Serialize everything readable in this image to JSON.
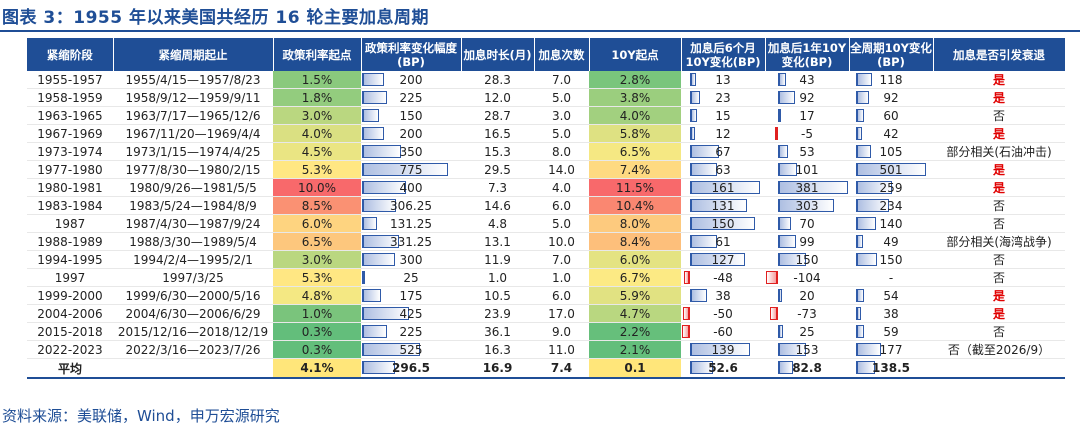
{
  "title": "图表 3：1955 年以来美国共经历 16 轮主要加息周期",
  "source": "资料来源：美联储，Wind，申万宏源研究",
  "columns": [
    "紧缩阶段",
    "紧缩周期起止",
    "政策利率起点",
    "政策利率变化幅度(BP)",
    "加息时长(月)",
    "加息次数",
    "10Y起点",
    "加息后6个月10Y变化(BP)",
    "加息后1年10Y变化(BP)",
    "全周期10Y变化(BP)",
    "加息是否引发衰退"
  ],
  "rows": [
    {
      "stage": "1955-1957",
      "period": "1955/4/15—1957/8/23",
      "rate_start": "1.5%",
      "rate_change": "200",
      "duration": "28.3",
      "hikes": "7.0",
      "y10_start": "2.8%",
      "y10_6m": "13",
      "y10_1y": "43",
      "y10_full": "118",
      "recession": "是"
    },
    {
      "stage": "1958-1959",
      "period": "1958/9/12—1959/9/11",
      "rate_start": "1.8%",
      "rate_change": "225",
      "duration": "12.0",
      "hikes": "5.0",
      "y10_start": "3.8%",
      "y10_6m": "23",
      "y10_1y": "92",
      "y10_full": "92",
      "recession": "是"
    },
    {
      "stage": "1963-1965",
      "period": "1963/7/17—1965/12/6",
      "rate_start": "3.0%",
      "rate_change": "150",
      "duration": "28.7",
      "hikes": "3.0",
      "y10_start": "4.0%",
      "y10_6m": "15",
      "y10_1y": "17",
      "y10_full": "60",
      "recession": "否"
    },
    {
      "stage": "1967-1969",
      "period": "1967/11/20—1969/4/4",
      "rate_start": "4.0%",
      "rate_change": "200",
      "duration": "16.5",
      "hikes": "5.0",
      "y10_start": "5.8%",
      "y10_6m": "12",
      "y10_1y": "-5",
      "y10_full": "42",
      "recession": "是"
    },
    {
      "stage": "1973-1974",
      "period": "1973/1/15—1974/4/25",
      "rate_start": "4.5%",
      "rate_change": "350",
      "duration": "15.3",
      "hikes": "8.0",
      "y10_start": "6.5%",
      "y10_6m": "67",
      "y10_1y": "53",
      "y10_full": "105",
      "recession": "部分相关(石油冲击)"
    },
    {
      "stage": "1977-1980",
      "period": "1977/8/30—1980/2/15",
      "rate_start": "5.3%",
      "rate_change": "775",
      "duration": "29.5",
      "hikes": "14.0",
      "y10_start": "7.4%",
      "y10_6m": "63",
      "y10_1y": "101",
      "y10_full": "501",
      "recession": "是"
    },
    {
      "stage": "1980-1981",
      "period": "1980/9/26—1981/5/5",
      "rate_start": "10.0%",
      "rate_change": "400",
      "duration": "7.3",
      "hikes": "4.0",
      "y10_start": "11.5%",
      "y10_6m": "161",
      "y10_1y": "381",
      "y10_full": "259",
      "recession": "是"
    },
    {
      "stage": "1983-1984",
      "period": "1983/5/24—1984/8/9",
      "rate_start": "8.5%",
      "rate_change": "306.25",
      "duration": "14.6",
      "hikes": "6.0",
      "y10_start": "10.4%",
      "y10_6m": "131",
      "y10_1y": "303",
      "y10_full": "234",
      "recession": "否"
    },
    {
      "stage": "1987",
      "period": "1987/4/30—1987/9/24",
      "rate_start": "6.0%",
      "rate_change": "131.25",
      "duration": "4.8",
      "hikes": "5.0",
      "y10_start": "8.0%",
      "y10_6m": "150",
      "y10_1y": "70",
      "y10_full": "140",
      "recession": "否"
    },
    {
      "stage": "1988-1989",
      "period": "1988/3/30—1989/5/4",
      "rate_start": "6.5%",
      "rate_change": "331.25",
      "duration": "13.1",
      "hikes": "10.0",
      "y10_start": "8.4%",
      "y10_6m": "61",
      "y10_1y": "99",
      "y10_full": "49",
      "recession": "部分相关(海湾战争)"
    },
    {
      "stage": "1994-1995",
      "period": "1994/2/4—1995/2/1",
      "rate_start": "3.0%",
      "rate_change": "300",
      "duration": "11.9",
      "hikes": "7.0",
      "y10_start": "6.0%",
      "y10_6m": "127",
      "y10_1y": "150",
      "y10_full": "150",
      "recession": "否"
    },
    {
      "stage": "1997",
      "period": "1997/3/25",
      "rate_start": "5.3%",
      "rate_change": "25",
      "duration": "1.0",
      "hikes": "1.0",
      "y10_start": "6.7%",
      "y10_6m": "-48",
      "y10_1y": "-104",
      "y10_full": "-",
      "recession": "否"
    },
    {
      "stage": "1999-2000",
      "period": "1999/6/30—2000/5/16",
      "rate_start": "4.8%",
      "rate_change": "175",
      "duration": "10.5",
      "hikes": "6.0",
      "y10_start": "5.9%",
      "y10_6m": "38",
      "y10_1y": "20",
      "y10_full": "54",
      "recession": "是"
    },
    {
      "stage": "2004-2006",
      "period": "2004/6/30—2006/6/29",
      "rate_start": "1.0%",
      "rate_change": "425",
      "duration": "23.9",
      "hikes": "17.0",
      "y10_start": "4.7%",
      "y10_6m": "-50",
      "y10_1y": "-73",
      "y10_full": "38",
      "recession": "是"
    },
    {
      "stage": "2015-2018",
      "period": "2015/12/16—2018/12/19",
      "rate_start": "0.3%",
      "rate_change": "225",
      "duration": "36.1",
      "hikes": "9.0",
      "y10_start": "2.2%",
      "y10_6m": "-60",
      "y10_1y": "25",
      "y10_full": "59",
      "recession": "否"
    },
    {
      "stage": "2022-2023",
      "period": "2022/3/16—2023/7/26",
      "rate_start": "0.3%",
      "rate_change": "525",
      "duration": "16.3",
      "hikes": "11.0",
      "y10_start": "2.1%",
      "y10_6m": "139",
      "y10_1y": "153",
      "y10_full": "177",
      "recession": "否（截至2026/9）"
    }
  ],
  "average": {
    "label": "平均",
    "rate_start": "4.1%",
    "rate_change": "296.5",
    "duration": "16.9",
    "hikes": "7.4",
    "y10_start": "0.1",
    "y10_6m": "52.6",
    "y10_1y": "82.8",
    "y10_full": "138.5"
  }
}
